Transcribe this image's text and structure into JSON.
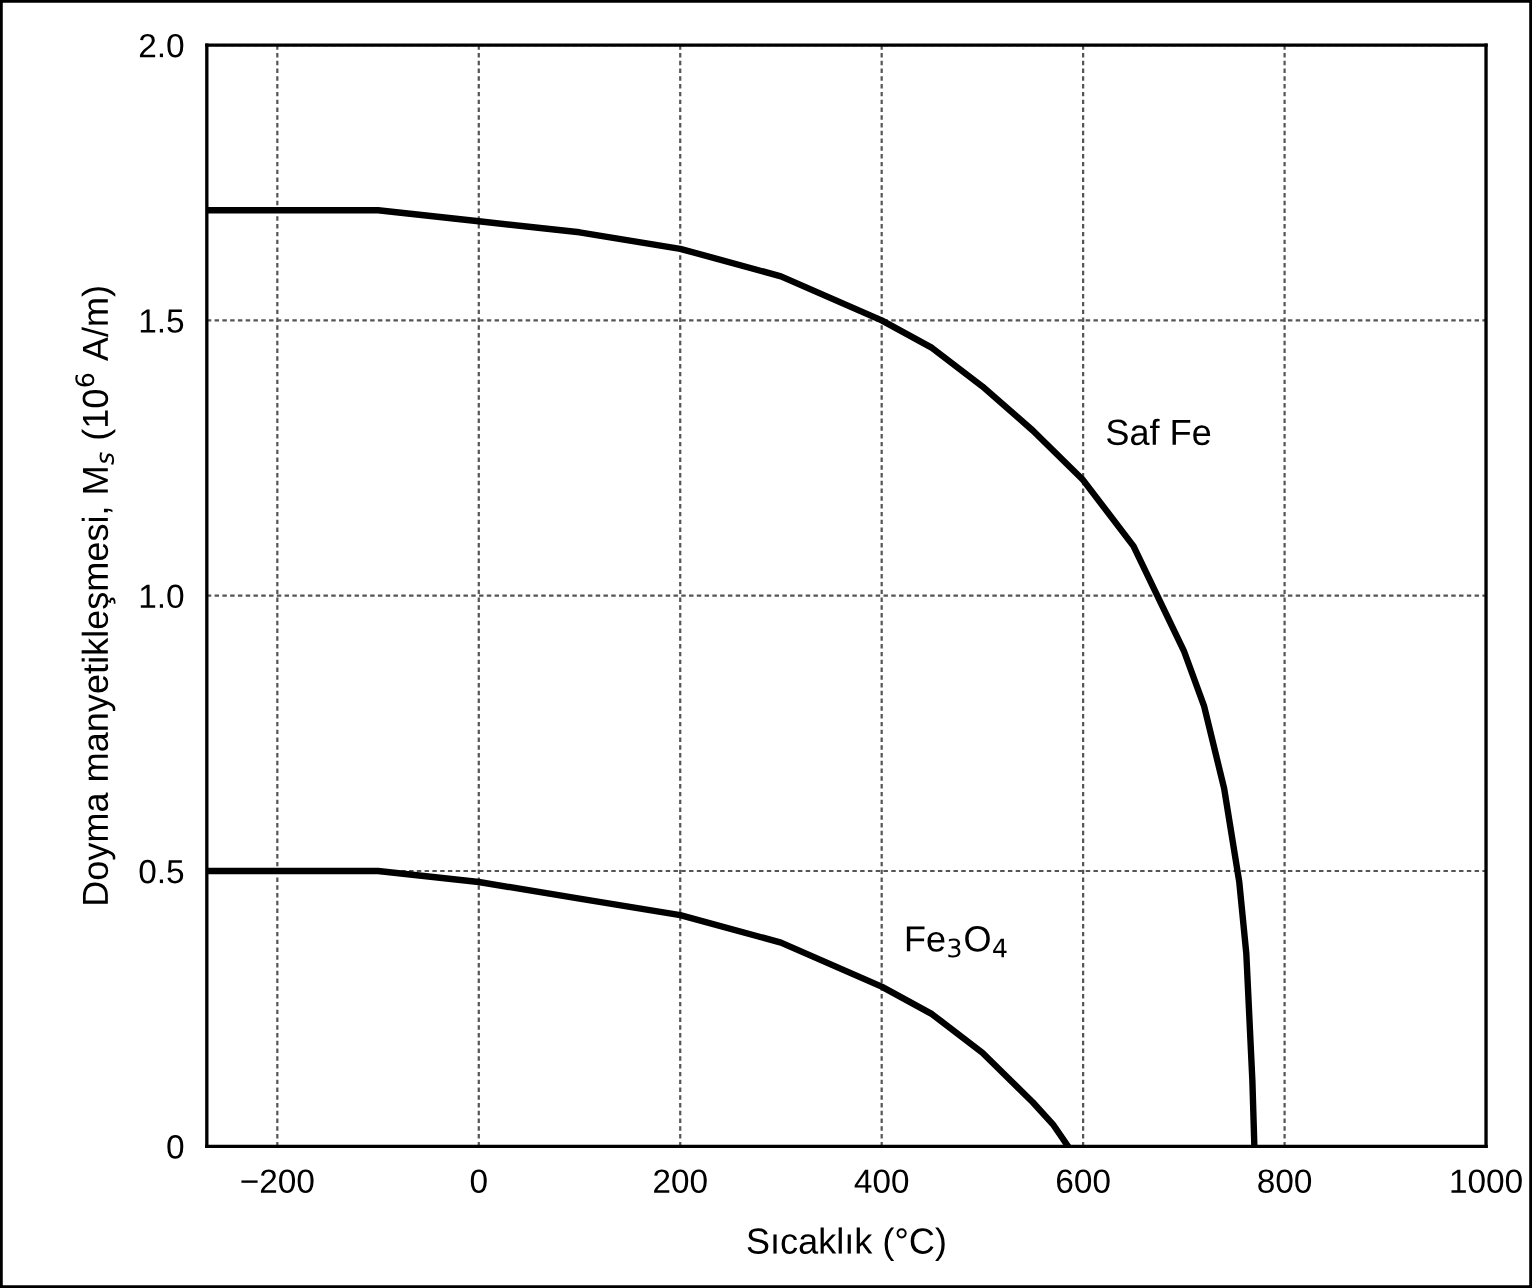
{
  "chart_data": {
    "type": "line",
    "xlabel": "Sıcaklık (°C)",
    "ylabel": "Doyma manyetikleşmesi, M$_{s}$ (10$^{6}$ A/m)",
    "series": [
      {
        "name": "Saf Fe",
        "color": "#000000",
        "x": [
          -270,
          -100,
          0,
          100,
          200,
          300,
          400,
          450,
          500,
          550,
          600,
          650,
          700,
          720,
          740,
          755,
          762,
          768,
          770
        ],
        "values": [
          1.7,
          1.7,
          1.68,
          1.66,
          1.63,
          1.58,
          1.5,
          1.45,
          1.38,
          1.3,
          1.21,
          1.09,
          0.9,
          0.8,
          0.65,
          0.48,
          0.35,
          0.12,
          0
        ]
      },
      {
        "name": "Fe$_{3}$O$_{4}$",
        "color": "#000000",
        "x": [
          -270,
          -100,
          0,
          100,
          200,
          300,
          400,
          450,
          500,
          550,
          570,
          585
        ],
        "values": [
          0.5,
          0.5,
          0.48,
          0.45,
          0.42,
          0.37,
          0.29,
          0.24,
          0.17,
          0.08,
          0.04,
          0
        ]
      }
    ],
    "xlim": [
      -270,
      1000
    ],
    "ylim": [
      0,
      2.0
    ],
    "xticks": [
      {
        "value": -200,
        "label": "−200"
      },
      0,
      200,
      400,
      600,
      800,
      1000
    ],
    "yticks": [
      0,
      {
        "value": 0.5,
        "label": "0.5"
      },
      {
        "value": 1.0,
        "label": "1.0"
      },
      {
        "value": 1.5,
        "label": "1.5"
      },
      {
        "value": 2.0,
        "label": "2.0"
      }
    ],
    "grid": true,
    "line_style": "solid",
    "marker": "none"
  }
}
